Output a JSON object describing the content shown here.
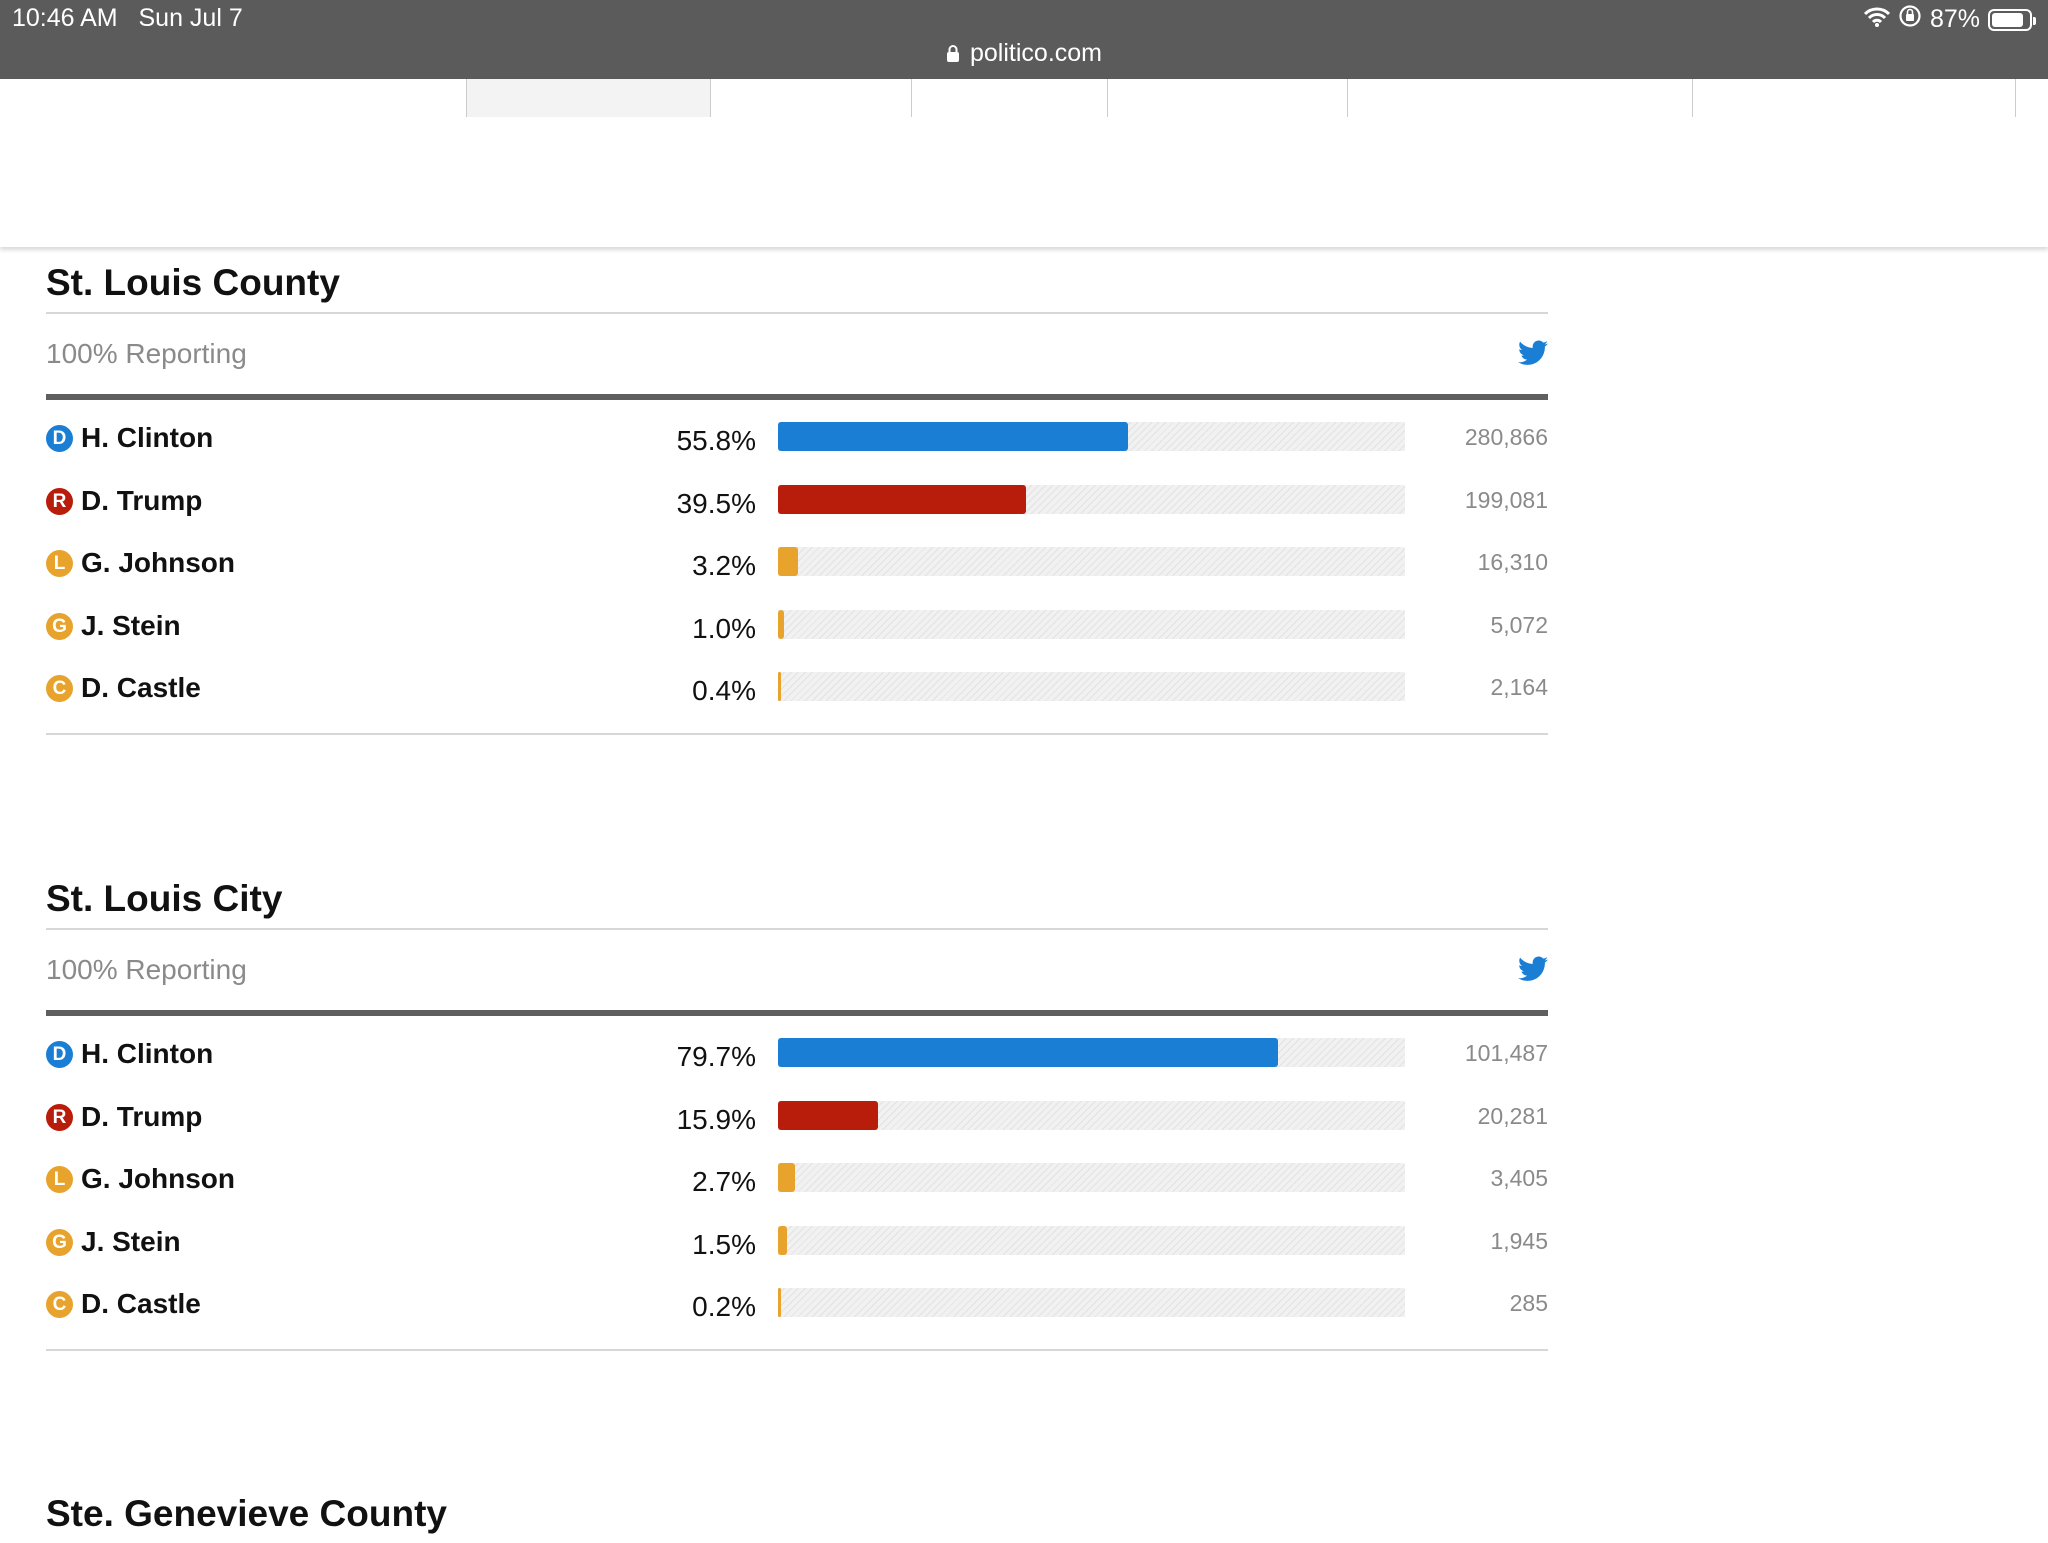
{
  "status_bar": {
    "time": "10:46 AM",
    "date": "Sun Jul 7",
    "url": "politico.com",
    "battery": "87%",
    "battery_level": 0.87
  },
  "colors": {
    "D": "#1a7fd4",
    "R": "#b81c0a",
    "L": "#e8a32d",
    "G": "#e8a32d",
    "C": "#e8a32d"
  },
  "sections": [
    {
      "title": "St. Louis County",
      "reporting": "100% Reporting",
      "candidates": [
        {
          "party": "D",
          "name": "H. Clinton",
          "pct_label": "55.8%",
          "pct": 55.8,
          "votes": "280,866"
        },
        {
          "party": "R",
          "name": "D. Trump",
          "pct_label": "39.5%",
          "pct": 39.5,
          "votes": "199,081"
        },
        {
          "party": "L",
          "name": "G. Johnson",
          "pct_label": "3.2%",
          "pct": 3.2,
          "votes": "16,310"
        },
        {
          "party": "G",
          "name": "J. Stein",
          "pct_label": "1.0%",
          "pct": 1.0,
          "votes": "5,072"
        },
        {
          "party": "C",
          "name": "D. Castle",
          "pct_label": "0.4%",
          "pct": 0.4,
          "votes": "2,164"
        }
      ]
    },
    {
      "title": "St. Louis City",
      "reporting": "100% Reporting",
      "candidates": [
        {
          "party": "D",
          "name": "H. Clinton",
          "pct_label": "79.7%",
          "pct": 79.7,
          "votes": "101,487"
        },
        {
          "party": "R",
          "name": "D. Trump",
          "pct_label": "15.9%",
          "pct": 15.9,
          "votes": "20,281"
        },
        {
          "party": "L",
          "name": "G. Johnson",
          "pct_label": "2.7%",
          "pct": 2.7,
          "votes": "3,405"
        },
        {
          "party": "G",
          "name": "J. Stein",
          "pct_label": "1.5%",
          "pct": 1.5,
          "votes": "1,945"
        },
        {
          "party": "C",
          "name": "D. Castle",
          "pct_label": "0.2%",
          "pct": 0.2,
          "votes": "285"
        }
      ]
    },
    {
      "title": "Ste. Genevieve County"
    }
  ]
}
